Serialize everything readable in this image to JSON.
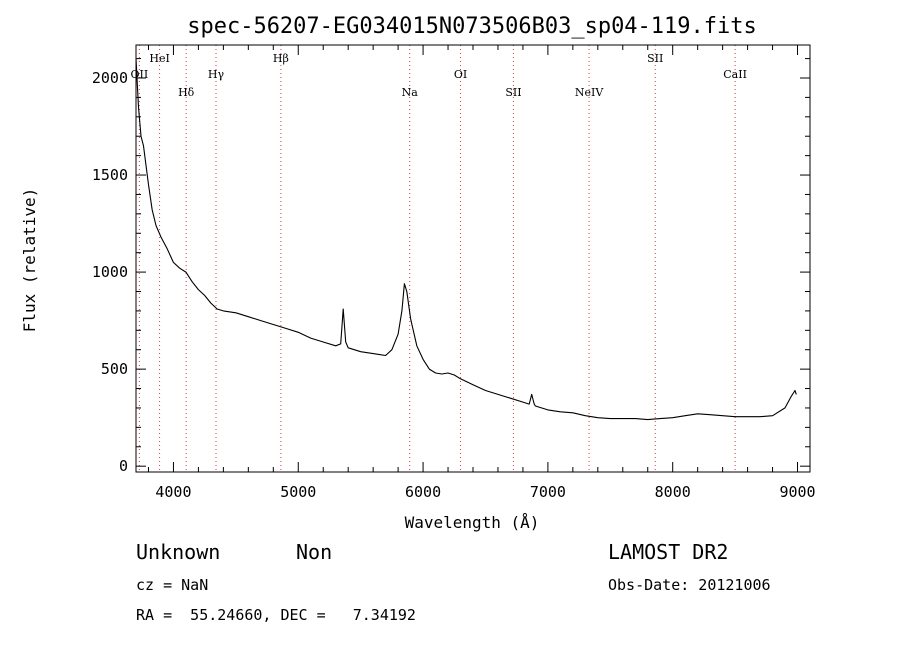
{
  "chart_data": {
    "type": "line",
    "title": "spec-56207-EG034015N073506B03_sp04-119.fits",
    "xlabel": "Wavelength (Å)",
    "ylabel": "Flux (relative)",
    "xlim": [
      3700,
      9100
    ],
    "ylim": [
      -30,
      2170
    ],
    "xticks": [
      4000,
      5000,
      6000,
      7000,
      8000,
      9000
    ],
    "yticks": [
      0,
      500,
      1000,
      1500,
      2000
    ],
    "grid": false,
    "series": [
      {
        "x": [
          3700,
          3720,
          3740,
          3760,
          3780,
          3800,
          3830,
          3860,
          3900,
          3950,
          4000,
          4050,
          4100,
          4150,
          4200,
          4250,
          4300,
          4350,
          4400,
          4500,
          4600,
          4700,
          4800,
          4900,
          5000,
          5100,
          5200,
          5300,
          5340,
          5360,
          5380,
          5400,
          5500,
          5600,
          5700,
          5750,
          5800,
          5830,
          5850,
          5870,
          5900,
          5950,
          6000,
          6050,
          6100,
          6150,
          6200,
          6250,
          6300,
          6400,
          6500,
          6600,
          6700,
          6800,
          6850,
          6870,
          6890,
          6900,
          7000,
          7100,
          7200,
          7300,
          7400,
          7500,
          7600,
          7700,
          7800,
          7900,
          8000,
          8100,
          8200,
          8300,
          8400,
          8500,
          8600,
          8700,
          8800,
          8900,
          8950,
          8980,
          8990
        ],
        "y": [
          2100,
          1850,
          1700,
          1650,
          1550,
          1450,
          1320,
          1240,
          1180,
          1120,
          1050,
          1020,
          1000,
          950,
          910,
          880,
          840,
          810,
          800,
          790,
          770,
          750,
          730,
          710,
          690,
          660,
          640,
          620,
          630,
          810,
          640,
          610,
          590,
          580,
          570,
          600,
          680,
          800,
          940,
          900,
          760,
          620,
          550,
          500,
          480,
          475,
          480,
          470,
          450,
          420,
          390,
          370,
          350,
          330,
          320,
          370,
          320,
          310,
          290,
          280,
          275,
          260,
          250,
          245,
          245,
          245,
          240,
          245,
          250,
          260,
          270,
          265,
          260,
          255,
          255,
          255,
          260,
          300,
          360,
          390,
          370
        ]
      }
    ],
    "line_markers": [
      {
        "label": "OII",
        "x": 3727,
        "row": 2
      },
      {
        "label": "HeI",
        "x": 3889,
        "row": 1
      },
      {
        "label": "Hδ",
        "x": 4102,
        "row": 3
      },
      {
        "label": "Hγ",
        "x": 4341,
        "row": 2
      },
      {
        "label": "Hβ",
        "x": 4861,
        "row": 1
      },
      {
        "label": "Na",
        "x": 5893,
        "row": 3
      },
      {
        "label": "OI",
        "x": 6300,
        "row": 2
      },
      {
        "label": "SII",
        "x": 6724,
        "row": 3
      },
      {
        "label": "NeIV",
        "x": 7330,
        "row": 3
      },
      {
        "label": "SII",
        "x": 7860,
        "row": 1
      },
      {
        "label": "CaII",
        "x": 8500,
        "row": 2
      }
    ],
    "marker_color": "#d04040"
  },
  "info": {
    "class": "Unknown",
    "subclass": "Non",
    "survey": "LAMOST DR2",
    "cz": "cz = NaN",
    "obs_date": "Obs-Date: 20121006",
    "coords": "RA =  55.24660, DEC =   7.34192"
  }
}
